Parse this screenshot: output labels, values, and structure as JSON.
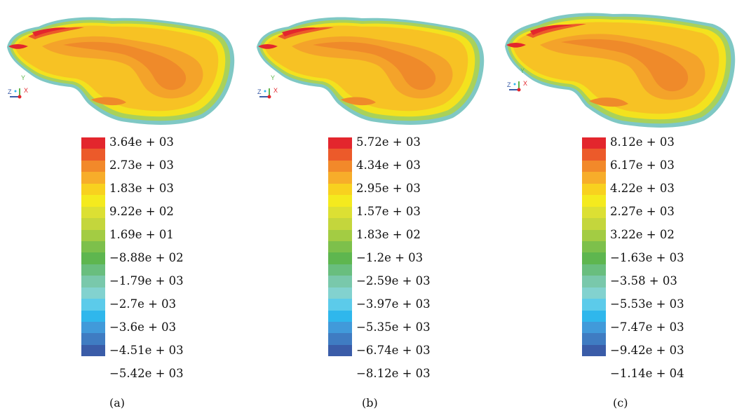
{
  "legend_colors": [
    "#e3262d",
    "#ec5a2a",
    "#f2892a",
    "#f7ad2a",
    "#f8d11f",
    "#f4ea1e",
    "#dce033",
    "#c4d63c",
    "#a3cc43",
    "#7dc04b",
    "#5eb64f",
    "#69be7e",
    "#79c8ab",
    "#82d2cf",
    "#5ccbea",
    "#2fb7ec",
    "#419ada",
    "#3f7cc2",
    "#3a5ca8"
  ],
  "panels": [
    {
      "caption": "(a)",
      "axes": {
        "y": "Y",
        "z": "Z",
        "x": "X"
      },
      "legend_labels": [
        "3.64e + 03",
        "2.73e + 03",
        "1.83e + 03",
        "9.22e + 02",
        "1.69e + 01",
        "−8.88e + 02",
        "−1.79e + 03",
        "−2.7e + 03",
        "−3.6e + 03",
        "−4.51e + 03",
        "−5.42e + 03"
      ]
    },
    {
      "caption": "(b)",
      "axes": {
        "y": "Y",
        "z": "Z",
        "x": "X"
      },
      "legend_labels": [
        "5.72e + 03",
        "4.34e + 03",
        "2.95e + 03",
        "1.57e + 03",
        "1.83e + 02",
        "−1.2e + 03",
        "−2.59e + 03",
        "−3.97e + 03",
        "−5.35e + 03",
        "−6.74e + 03",
        "−8.12e + 03"
      ]
    },
    {
      "caption": "(c)",
      "axes": {
        "y": "Y",
        "z": "Z",
        "x": "X"
      },
      "legend_labels": [
        "8.12e + 03",
        "6.17e + 03",
        "4.22e + 03",
        "2.27e + 03",
        "3.22e + 02",
        "−1.63e + 03",
        "−3.58 + 03",
        "−5.53e + 03",
        "−7.47e + 03",
        "−9.42e + 03",
        "−1.14e + 04"
      ]
    }
  ]
}
